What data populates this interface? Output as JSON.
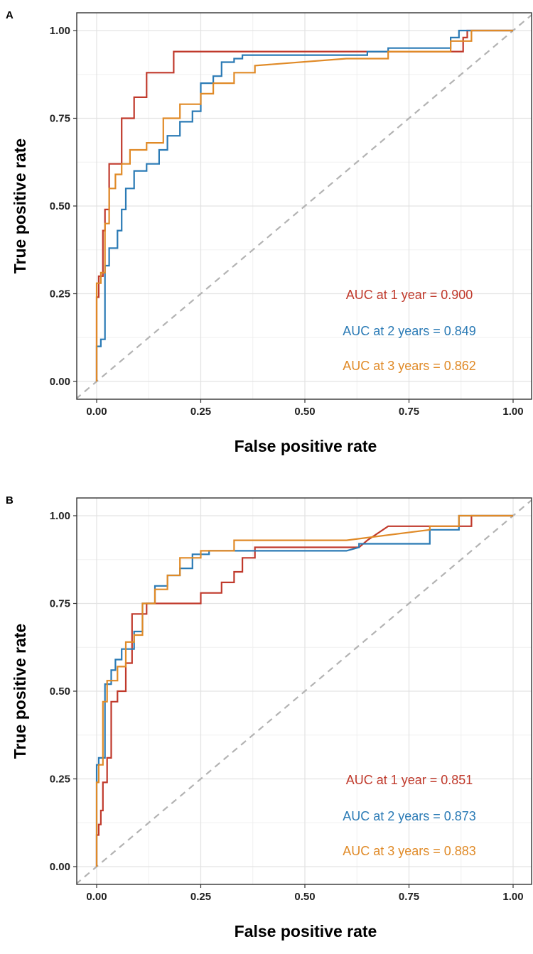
{
  "chart_data": [
    {
      "type": "line",
      "panel": "A",
      "xlabel": "False positive rate",
      "ylabel": "True positive rate",
      "xlim": [
        0,
        1
      ],
      "ylim": [
        0,
        1
      ],
      "xticks": [
        "0.00",
        "0.25",
        "0.50",
        "0.75",
        "1.00"
      ],
      "yticks": [
        "0.00",
        "0.25",
        "0.50",
        "0.75",
        "1.00"
      ],
      "grid": true,
      "reference_line": "diagonal dashed",
      "series": [
        {
          "color": "#c0392b",
          "x": [
            0,
            0,
            0.005,
            0.005,
            0.015,
            0.015,
            0.02,
            0.02,
            0.03,
            0.03,
            0.04,
            0.04,
            0.06,
            0.06,
            0.09,
            0.09,
            0.12,
            0.12,
            0.16,
            0.16,
            0.185,
            0.185,
            0.6,
            0.88,
            0.88,
            0.89,
            0.89,
            1.0
          ],
          "y": [
            0,
            0.24,
            0.24,
            0.3,
            0.3,
            0.43,
            0.43,
            0.49,
            0.49,
            0.62,
            0.62,
            0.62,
            0.62,
            0.75,
            0.75,
            0.81,
            0.81,
            0.88,
            0.88,
            0.88,
            0.88,
            0.94,
            0.94,
            0.94,
            0.98,
            0.98,
            1.0,
            1.0
          ]
        },
        {
          "color": "#2a7ab5",
          "x": [
            0,
            0,
            0.01,
            0.01,
            0.02,
            0.02,
            0.03,
            0.03,
            0.05,
            0.05,
            0.06,
            0.06,
            0.07,
            0.07,
            0.09,
            0.09,
            0.12,
            0.12,
            0.15,
            0.15,
            0.17,
            0.17,
            0.2,
            0.2,
            0.23,
            0.23,
            0.25,
            0.25,
            0.28,
            0.28,
            0.3,
            0.3,
            0.33,
            0.33,
            0.35,
            0.35,
            0.6,
            0.65,
            0.65,
            0.7,
            0.7,
            0.85,
            0.85,
            0.87,
            0.87,
            1.0
          ],
          "y": [
            0,
            0.1,
            0.1,
            0.12,
            0.12,
            0.33,
            0.33,
            0.38,
            0.38,
            0.43,
            0.43,
            0.49,
            0.49,
            0.55,
            0.55,
            0.6,
            0.6,
            0.62,
            0.62,
            0.66,
            0.66,
            0.7,
            0.7,
            0.74,
            0.74,
            0.77,
            0.77,
            0.85,
            0.85,
            0.87,
            0.87,
            0.91,
            0.91,
            0.92,
            0.92,
            0.93,
            0.93,
            0.93,
            0.94,
            0.94,
            0.95,
            0.95,
            0.98,
            0.98,
            1.0,
            1.0
          ]
        },
        {
          "color": "#e08a27",
          "x": [
            0,
            0,
            0.01,
            0.01,
            0.02,
            0.02,
            0.03,
            0.03,
            0.045,
            0.045,
            0.06,
            0.06,
            0.08,
            0.08,
            0.12,
            0.12,
            0.16,
            0.16,
            0.2,
            0.2,
            0.25,
            0.25,
            0.28,
            0.28,
            0.33,
            0.33,
            0.38,
            0.38,
            0.6,
            0.7,
            0.7,
            0.85,
            0.85,
            0.9,
            0.9,
            1.0
          ],
          "y": [
            0,
            0.28,
            0.28,
            0.31,
            0.31,
            0.45,
            0.45,
            0.55,
            0.55,
            0.59,
            0.59,
            0.62,
            0.62,
            0.66,
            0.66,
            0.68,
            0.68,
            0.75,
            0.75,
            0.79,
            0.79,
            0.82,
            0.82,
            0.85,
            0.85,
            0.88,
            0.88,
            0.9,
            0.92,
            0.92,
            0.94,
            0.94,
            0.97,
            0.97,
            1.0,
            1.0
          ]
        }
      ],
      "annotations": [
        {
          "text": "AUC at 1 year = 0.900",
          "color": "#c0392b"
        },
        {
          "text": "AUC at 2 years = 0.849",
          "color": "#2a7ab5"
        },
        {
          "text": "AUC at 3 years = 0.862",
          "color": "#e08a27"
        }
      ]
    },
    {
      "type": "line",
      "panel": "B",
      "xlabel": "False positive rate",
      "ylabel": "True positive rate",
      "xlim": [
        0,
        1
      ],
      "ylim": [
        0,
        1
      ],
      "xticks": [
        "0.00",
        "0.25",
        "0.50",
        "0.75",
        "1.00"
      ],
      "yticks": [
        "0.00",
        "0.25",
        "0.50",
        "0.75",
        "1.00"
      ],
      "grid": true,
      "reference_line": "diagonal dashed",
      "series": [
        {
          "color": "#c0392b",
          "x": [
            0,
            0,
            0.005,
            0.005,
            0.01,
            0.01,
            0.015,
            0.015,
            0.025,
            0.025,
            0.035,
            0.035,
            0.045,
            0.045,
            0.05,
            0.05,
            0.07,
            0.07,
            0.085,
            0.085,
            0.12,
            0.12,
            0.25,
            0.25,
            0.3,
            0.3,
            0.33,
            0.33,
            0.35,
            0.35,
            0.38,
            0.38,
            0.63,
            0.65,
            0.65,
            0.7,
            0.7,
            0.9,
            0.9,
            1.0
          ],
          "y": [
            0,
            0.09,
            0.09,
            0.12,
            0.12,
            0.16,
            0.16,
            0.24,
            0.24,
            0.31,
            0.31,
            0.47,
            0.47,
            0.47,
            0.47,
            0.5,
            0.5,
            0.58,
            0.58,
            0.72,
            0.72,
            0.75,
            0.75,
            0.78,
            0.78,
            0.81,
            0.81,
            0.84,
            0.84,
            0.88,
            0.88,
            0.91,
            0.91,
            0.93,
            0.93,
            0.97,
            0.97,
            0.97,
            1.0,
            1.0
          ]
        },
        {
          "color": "#2a7ab5",
          "x": [
            0,
            0,
            0.005,
            0.005,
            0.02,
            0.02,
            0.035,
            0.035,
            0.045,
            0.045,
            0.06,
            0.06,
            0.09,
            0.09,
            0.11,
            0.11,
            0.14,
            0.14,
            0.17,
            0.17,
            0.2,
            0.2,
            0.23,
            0.23,
            0.27,
            0.27,
            0.6,
            0.63,
            0.63,
            0.8,
            0.8,
            0.87,
            0.87,
            1.0
          ],
          "y": [
            0,
            0.29,
            0.29,
            0.31,
            0.31,
            0.52,
            0.52,
            0.56,
            0.56,
            0.59,
            0.59,
            0.62,
            0.62,
            0.67,
            0.67,
            0.75,
            0.75,
            0.8,
            0.8,
            0.83,
            0.83,
            0.85,
            0.85,
            0.89,
            0.89,
            0.9,
            0.9,
            0.91,
            0.92,
            0.92,
            0.96,
            0.96,
            1.0,
            1.0
          ]
        },
        {
          "color": "#e08a27",
          "x": [
            0,
            0,
            0.005,
            0.005,
            0.015,
            0.015,
            0.025,
            0.025,
            0.05,
            0.05,
            0.07,
            0.07,
            0.09,
            0.09,
            0.11,
            0.11,
            0.14,
            0.14,
            0.17,
            0.17,
            0.2,
            0.2,
            0.25,
            0.25,
            0.33,
            0.33,
            0.6,
            0.8,
            0.8,
            0.87,
            0.87,
            1.0
          ],
          "y": [
            0,
            0.24,
            0.24,
            0.29,
            0.29,
            0.47,
            0.47,
            0.53,
            0.53,
            0.57,
            0.57,
            0.64,
            0.64,
            0.66,
            0.66,
            0.75,
            0.75,
            0.79,
            0.79,
            0.83,
            0.83,
            0.88,
            0.88,
            0.9,
            0.9,
            0.93,
            0.93,
            0.96,
            0.97,
            0.97,
            1.0,
            1.0
          ]
        }
      ],
      "annotations": [
        {
          "text": "AUC at 1 year = 0.851",
          "color": "#c0392b"
        },
        {
          "text": "AUC at 2 years = 0.873",
          "color": "#2a7ab5"
        },
        {
          "text": "AUC at 3 years = 0.883",
          "color": "#e08a27"
        }
      ]
    }
  ]
}
